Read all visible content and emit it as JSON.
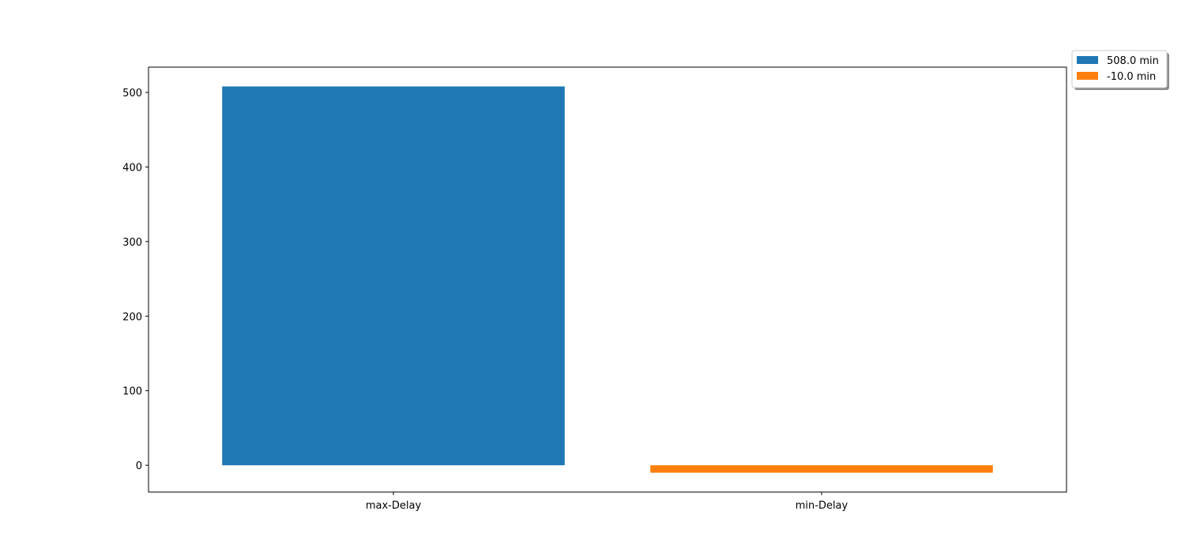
{
  "chart_data": {
    "type": "bar",
    "title": "",
    "xlabel": "",
    "ylabel": "",
    "categories": [
      "max-Delay",
      "min-Delay"
    ],
    "series": [
      {
        "name": "508.0 min",
        "category": "max-Delay",
        "value": 508.0,
        "color": "#1f77b4"
      },
      {
        "name": "-10.0 min",
        "category": "min-Delay",
        "value": -10.0,
        "color": "#ff7f0e"
      }
    ],
    "ylim": [
      -35.9,
      533.9
    ],
    "yticks": [
      0,
      100,
      200,
      300,
      400,
      500
    ],
    "grid": false,
    "legend_position": "top-right outside"
  }
}
